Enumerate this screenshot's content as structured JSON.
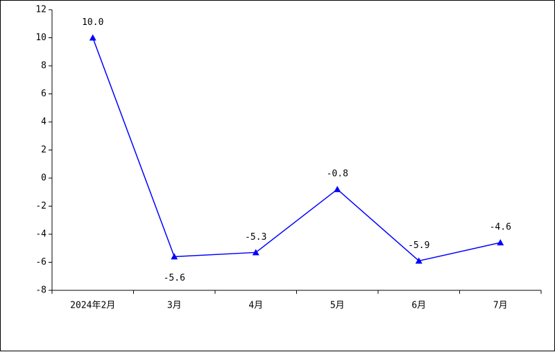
{
  "chart_data": {
    "type": "line",
    "categories": [
      "2024年2月",
      "3月",
      "4月",
      "5月",
      "6月",
      "7月"
    ],
    "series": [
      {
        "color": "#0000ff",
        "values": [
          10.0,
          -5.6,
          -5.3,
          -0.8,
          -5.9,
          -4.6
        ],
        "value_labels": [
          "10.0",
          "-5.6",
          "-5.3",
          "-0.8",
          "-5.9",
          "-4.6"
        ]
      }
    ],
    "ylim": [
      -8,
      12
    ],
    "yticks": [
      -8,
      -6,
      -4,
      -2,
      0,
      2,
      4,
      6,
      8,
      10,
      12
    ],
    "grid": false
  }
}
